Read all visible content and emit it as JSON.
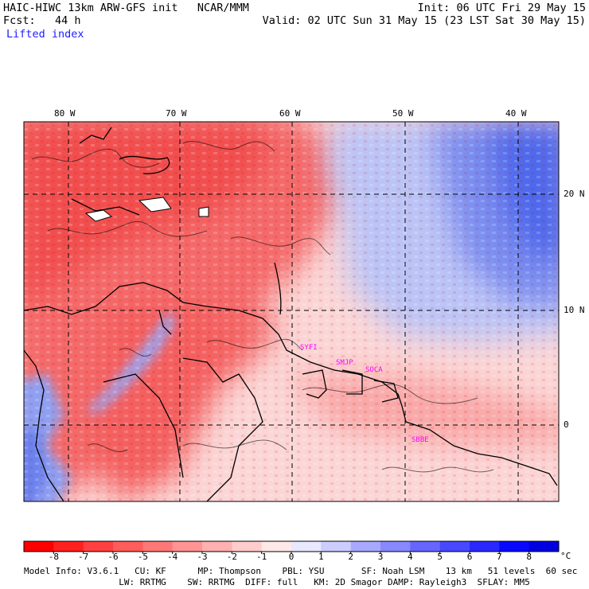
{
  "header": {
    "title_left": "HAIC-HIWC 13km ARW-GFS init   NCAR/MMM",
    "forecast": "Fcst:   44 h",
    "field": "Lifted index",
    "init": "Init: 06 UTC Fri 29 May 15",
    "valid": "Valid: 02 UTC Sun 31 May 15 (23 LST Sat 30 May 15)"
  },
  "map": {
    "lon_labels": [
      "80 W",
      "70 W",
      "60 W",
      "50 W",
      "40 W"
    ],
    "lat_labels": [
      "20 N",
      "10 N",
      "0"
    ],
    "stations": [
      "SYFI",
      "SMJP",
      "SOCA",
      "SBBE"
    ],
    "colors": {
      "negative": "#f23a3a",
      "neutral": "#ffffff",
      "positive": "#2b4ff0",
      "contour": "#000000",
      "station": "#ff00ff"
    }
  },
  "colorbar": {
    "labels": [
      "-8",
      "-7",
      "-6",
      "-5",
      "-4",
      "-3",
      "-2",
      "-1",
      "0",
      "1",
      "2",
      "3",
      "4",
      "5",
      "6",
      "7",
      "8"
    ],
    "unit": "°C",
    "colors": [
      "#ff0000",
      "#ff2020",
      "#ff4040",
      "#ff5c5c",
      "#ff7878",
      "#ff9494",
      "#ffb0b0",
      "#ffcccc",
      "#ffe8e8",
      "#e8e8ff",
      "#ccccff",
      "#a8a8ff",
      "#8888ff",
      "#6666ff",
      "#4848ff",
      "#2828ff",
      "#0808ff",
      "#0000e0"
    ]
  },
  "footer": {
    "line1": "Model Info: V3.6.1   CU: KF      MP: Thompson    PBL: YSU       SF: Noah LSM    13 km   51 levels  60 sec",
    "line2": "                  LW: RRTMG    SW: RRTMG  DIFF: full   KM: 2D Smagor DAMP: Rayleigh3  SFLAY: MM5"
  }
}
